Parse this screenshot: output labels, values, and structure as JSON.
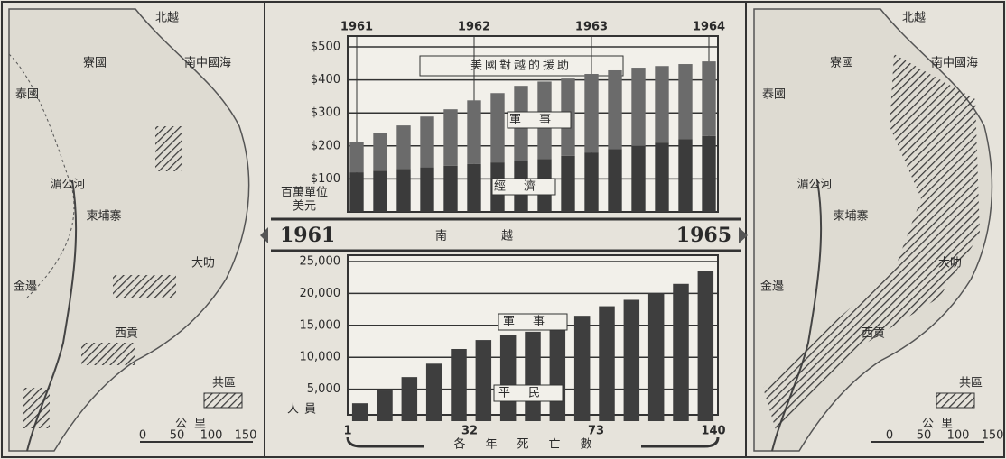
{
  "chart_data": [
    {
      "type": "stacked-bar",
      "title": "美國對越的援助",
      "y_unit": [
        "百萬單位",
        "美元"
      ],
      "x": [
        1961,
        1961.2,
        1961.4,
        1961.6,
        1961.8,
        1962,
        1962.2,
        1962.4,
        1962.6,
        1962.8,
        1963,
        1963.2,
        1963.4,
        1963.6,
        1963.8,
        1964
      ],
      "xlim": [
        1961,
        1964
      ],
      "xticks": [
        1961,
        1962,
        1963,
        1964
      ],
      "ylim": [
        0,
        500
      ],
      "yticks": [
        {
          "value": 100,
          "label": "$100"
        },
        {
          "value": 200,
          "label": "$200"
        },
        {
          "value": 300,
          "label": "$300"
        },
        {
          "value": 400,
          "label": "$400"
        },
        {
          "value": 500,
          "label": "$500"
        }
      ],
      "grid": true,
      "series": [
        {
          "name": "經濟",
          "color": "#3b3b3b",
          "values": [
            120,
            125,
            130,
            135,
            140,
            145,
            150,
            155,
            160,
            170,
            180,
            190,
            200,
            210,
            220,
            230
          ]
        },
        {
          "name": "軍事",
          "color": "#6b6b6b",
          "values": [
            92,
            115,
            132,
            154,
            171,
            193,
            210,
            227,
            235,
            234,
            238,
            239,
            237,
            232,
            228,
            226
          ]
        }
      ]
    },
    {
      "type": "bar",
      "banner": [
        "1961",
        "南越",
        "1965"
      ],
      "y_label": "人員",
      "annotations": [
        "軍事",
        "平民"
      ],
      "categories": [
        null,
        null,
        null,
        null,
        null,
        null,
        null,
        null,
        null,
        null,
        null,
        null,
        null,
        null,
        null
      ],
      "values": [
        2800,
        4800,
        6900,
        9000,
        11300,
        12700,
        13500,
        14000,
        14500,
        16500,
        18000,
        19000,
        20000,
        21500,
        23500
      ],
      "color": "#3e3e3e",
      "ylim": [
        0,
        25000
      ],
      "yticks": [
        {
          "value": 5000,
          "label": "5,000"
        },
        {
          "value": 10000,
          "label": "10,000"
        },
        {
          "value": 15000,
          "label": "15,000"
        },
        {
          "value": 20000,
          "label": "20,000"
        },
        {
          "value": 25000,
          "label": "25,000"
        }
      ],
      "grid": true,
      "deaths": {
        "label": "各年死亡數",
        "values": [
          1,
          32,
          73,
          140
        ]
      }
    }
  ],
  "maps": [
    {
      "labels": [
        "北越",
        "寮國",
        "泰國",
        "柬埔寨",
        "湄公河",
        "南中國海",
        "大叻",
        "金邊",
        "西貢",
        "共區"
      ],
      "scale_unit": "公里",
      "scale": [
        0,
        50,
        100,
        150
      ]
    },
    {
      "labels": [
        "北越",
        "寮國",
        "泰國",
        "柬埔寨",
        "湄公河",
        "南中國海",
        "大叻",
        "金邊",
        "西貢",
        "共區"
      ],
      "scale_unit": "公里",
      "scale": [
        0,
        50,
        100,
        150
      ]
    }
  ]
}
